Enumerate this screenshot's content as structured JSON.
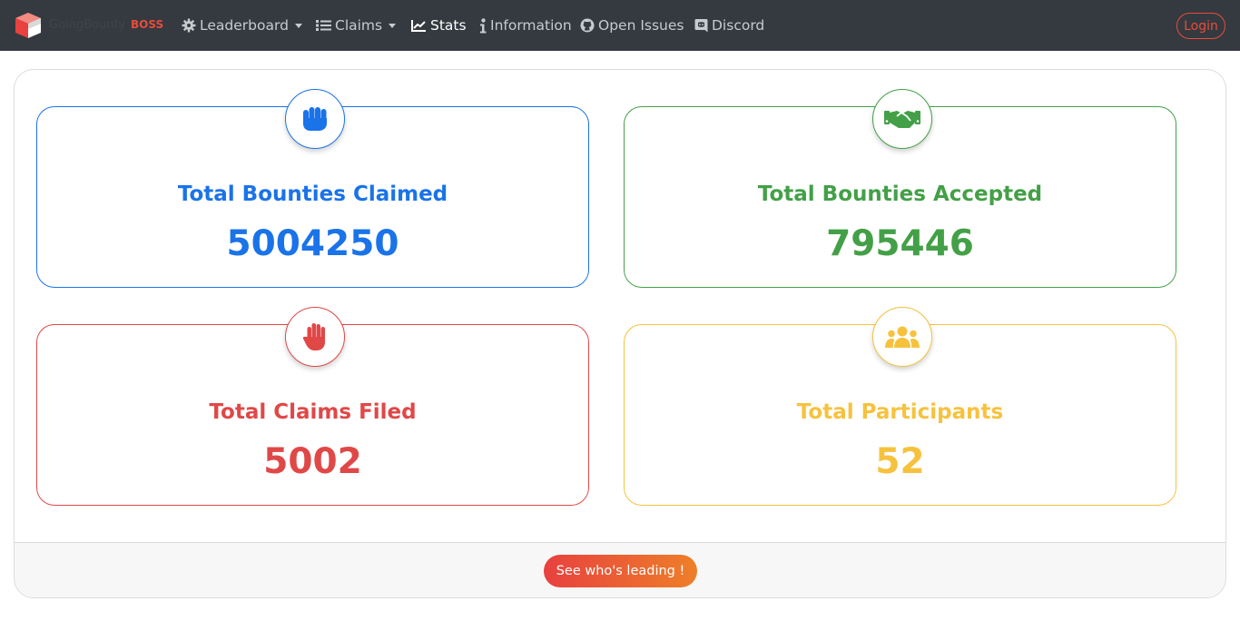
{
  "brand": {
    "name": "GoingBounty",
    "badge": "BOSS"
  },
  "nav": {
    "items": [
      {
        "label": "Leaderboard",
        "icon": "cog-icon",
        "dropdown": true
      },
      {
        "label": "Claims",
        "icon": "list-icon",
        "dropdown": true
      },
      {
        "label": "Stats",
        "icon": "chart-line-icon",
        "active": true
      },
      {
        "label": "Information",
        "icon": "info-icon"
      },
      {
        "label": "Open Issues",
        "icon": "github-icon"
      },
      {
        "label": "Discord",
        "icon": "discord-icon"
      }
    ],
    "login_label": "Login"
  },
  "stats": {
    "claimed": {
      "title": "Total Bounties Claimed",
      "value": "5004250",
      "icon": "fist-icon",
      "color": "#1a73e8"
    },
    "accepted": {
      "title": "Total Bounties Accepted",
      "value": "795446",
      "icon": "handshake-icon",
      "color": "#43a047"
    },
    "filed": {
      "title": "Total Claims Filed",
      "value": "5002",
      "icon": "raised-hand-icon",
      "color": "#e04848"
    },
    "participants": {
      "title": "Total Participants",
      "value": "52",
      "icon": "users-icon",
      "color": "#f6c23e"
    }
  },
  "footer": {
    "button_label": "See who's leading !"
  },
  "colors": {
    "navbar": "#343a40",
    "accent": "#e74c3c"
  }
}
